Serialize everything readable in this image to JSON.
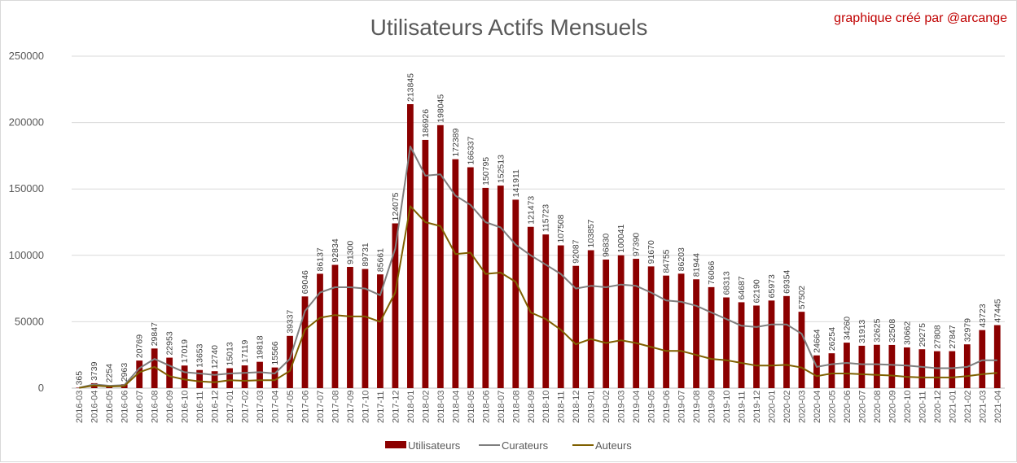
{
  "chart_data": {
    "type": "bar",
    "title": "Utilisateurs Actifs Mensuels",
    "credit": "graphique créé par  @arcange",
    "colors": {
      "Utilisateurs": "#8b0000",
      "Curateurs": "#7f7f7f",
      "Auteurs": "#7f6000"
    },
    "ylim": [
      0,
      250000
    ],
    "yticks": [
      "0",
      "50000",
      "100000",
      "150000",
      "200000",
      "250000"
    ],
    "grid": true,
    "legend_position": "bottom",
    "categories": [
      "2016-03",
      "2016-04",
      "2016-05",
      "2016-06",
      "2016-07",
      "2016-08",
      "2016-09",
      "2016-10",
      "2016-11",
      "2016-12",
      "2017-01",
      "2017-02",
      "2017-03",
      "2017-04",
      "2017-05",
      "2017-06",
      "2017-07",
      "2017-08",
      "2017-09",
      "2017-10",
      "2017-11",
      "2017-12",
      "2018-01",
      "2018-02",
      "2018-03",
      "2018-04",
      "2018-05",
      "2018-06",
      "2018-07",
      "2018-08",
      "2018-09",
      "2018-10",
      "2018-11",
      "2018-12",
      "2019-01",
      "2019-02",
      "2019-03",
      "2019-04",
      "2019-05",
      "2019-06",
      "2019-07",
      "2019-08",
      "2019-09",
      "2019-10",
      "2019-11",
      "2019-12",
      "2020-01",
      "2020-02",
      "2020-03",
      "2020-04",
      "2020-05",
      "2020-06",
      "2020-07",
      "2020-08",
      "2020-09",
      "2020-10",
      "2020-11",
      "2020-12",
      "2021-01",
      "2021-02",
      "2021-03",
      "2021-04"
    ],
    "series": [
      {
        "name": "Utilisateurs",
        "kind": "bar",
        "values": [
          365,
          3739,
          2254,
          2963,
          20769,
          29847,
          22953,
          17019,
          13653,
          12740,
          15013,
          17119,
          19818,
          15566,
          39337,
          69046,
          86137,
          92834,
          91300,
          89731,
          85661,
          124075,
          213845,
          186926,
          198045,
          172389,
          166337,
          150795,
          152513,
          141911,
          121473,
          115723,
          107508,
          92087,
          103857,
          96830,
          100041,
          97390,
          91670,
          84755,
          86203,
          81944,
          76066,
          68313,
          64687,
          62190,
          65973,
          69354,
          57502,
          24664,
          26254,
          34260,
          31913,
          32625,
          32508,
          30662,
          29275,
          27808,
          27847,
          32979,
          43723,
          47445
        ]
      },
      {
        "name": "Curateurs",
        "kind": "line",
        "values": [
          300,
          2800,
          1800,
          2300,
          15000,
          22000,
          17000,
          12000,
          11000,
          10000,
          11000,
          11500,
          12000,
          11000,
          22000,
          58000,
          72000,
          76000,
          76000,
          75000,
          70000,
          105000,
          182000,
          160000,
          161000,
          145000,
          138000,
          125000,
          121000,
          108000,
          100000,
          93000,
          86000,
          75000,
          77000,
          76000,
          78000,
          77000,
          72000,
          66000,
          65000,
          62000,
          57000,
          52000,
          47000,
          46000,
          48000,
          48000,
          41000,
          16000,
          18000,
          19000,
          18000,
          18000,
          17500,
          17000,
          16000,
          15000,
          15000,
          16000,
          21000,
          21000
        ]
      },
      {
        "name": "Auteurs",
        "kind": "line",
        "values": [
          200,
          2000,
          1200,
          1600,
          12000,
          16000,
          9000,
          6500,
          5000,
          4500,
          6000,
          5500,
          6000,
          6000,
          13000,
          44000,
          53000,
          55000,
          54000,
          54000,
          50000,
          72000,
          137000,
          125000,
          122000,
          101000,
          102000,
          86000,
          87000,
          80000,
          57000,
          52000,
          44000,
          33000,
          37000,
          34000,
          36000,
          34000,
          31000,
          28000,
          28000,
          25000,
          22000,
          21000,
          19000,
          17000,
          17000,
          17500,
          15500,
          9000,
          11000,
          11000,
          10500,
          10000,
          9500,
          8500,
          8000,
          8000,
          8000,
          9000,
          10500,
          11500
        ]
      }
    ]
  }
}
